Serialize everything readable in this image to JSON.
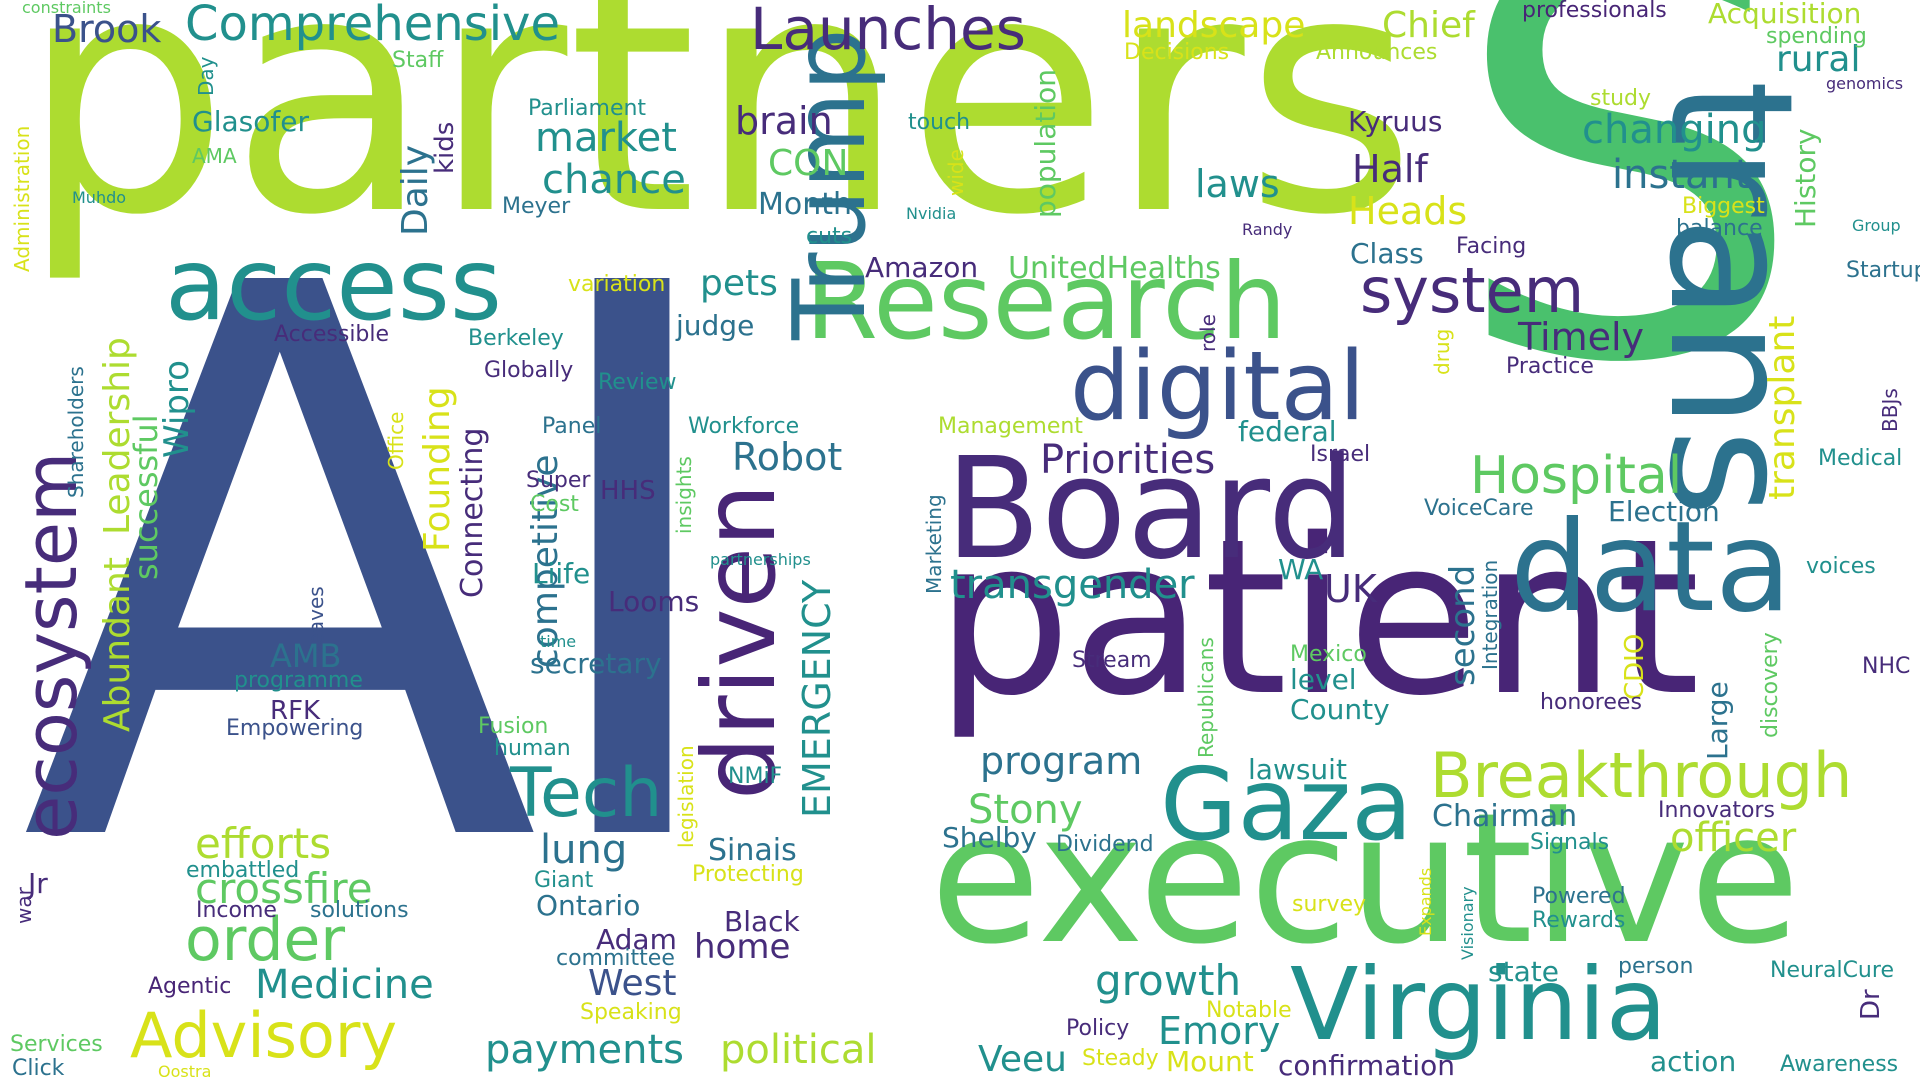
{
  "palette": {
    "navy": "#3b528b",
    "purple": "#472c7a",
    "deep_purple": "#482576",
    "teal": "#21908d",
    "dark_teal": "#2c728e",
    "green": "#5ec962",
    "lime": "#addc30",
    "yellow": "#d8e219",
    "bright_green": "#4ac16d"
  },
  "words": [
    "AI",
    "partners",
    "S",
    "patient",
    "executive",
    "Board",
    "trans",
    "data",
    "Research",
    "Trump",
    "driven",
    "access",
    "Gaza",
    "Virginia",
    "digital",
    "ecosystem",
    "Breakthrough",
    "Tech",
    "system",
    "Advisory",
    "order",
    "Launches",
    "Comprehensive",
    "Hospital",
    "Medicine",
    "crossfire",
    "efforts",
    "Priorities",
    "transgender",
    "payments",
    "political",
    "growth",
    "Emory",
    "Stony",
    "officer",
    "changing",
    "instant",
    "Brook",
    "landscape",
    "Chief",
    "Acquisition",
    "professionals",
    "market",
    "chance",
    "brain",
    "Half",
    "Heads",
    "Kyruus",
    "rural",
    "transplant",
    "History",
    "laws",
    "Timely",
    "Chairman",
    "program",
    "Robot",
    "lung",
    "EMERGENCY",
    "competitive",
    "Connecting",
    "Founding",
    "Leadership",
    "Abundant",
    "Wipro",
    "successful",
    "Daily",
    "kids",
    "population",
    "UnitedHealths",
    "Amazon",
    "judge",
    "pets",
    "CON",
    "Month",
    "cuts",
    "Glasofer",
    "Parliament",
    "Staff",
    "Day",
    "AMA",
    "Muhdo",
    "Administration",
    "constraints",
    "Decisions",
    "Announces",
    "spending",
    "genomics",
    "study",
    "touch",
    "Meyer",
    "wide",
    "Nvidia",
    "Randy",
    "Biggest",
    "balance",
    "Group",
    "Startup",
    "Class",
    "Facing",
    "Practice",
    "role",
    "drug",
    "federal",
    "Israel",
    "Election",
    "VoiceCare",
    "Medical",
    "BBJs",
    "voices",
    "second",
    "Integration",
    "UK",
    "WA",
    "Looms",
    "Liife",
    "secretary",
    "Management",
    "Workforce",
    "Globally",
    "Review",
    "Berkeley",
    "Accessible",
    "variation",
    "Panel",
    "Office",
    "Shareholders",
    "Super",
    "Cost",
    "insights",
    "HHS",
    "Marketing",
    "partnerships",
    "Weaves",
    "AMB",
    "programme",
    "RFK",
    "Empowering",
    "time",
    "Stream",
    "Republicans",
    "Mexico",
    "level",
    "County",
    "CDIO",
    "Large",
    "discovery",
    "NHC",
    "honorees",
    "lawsuit",
    "Innovators",
    "Signals",
    "Fusion",
    "human",
    "legislation",
    "NMiF",
    "Sinais",
    "Protecting",
    "Giant",
    "Ontario",
    "Adam",
    "committee",
    "Black",
    "home",
    "West",
    "Shelby",
    "Dividend",
    "Powered",
    "Rewards",
    "survey",
    "Expands",
    "Visionary",
    "state",
    "person",
    "NeuralCure",
    "Dr",
    "Speaking",
    "Notable",
    "Policy",
    "Steady",
    "Mount",
    "confirmation",
    "action",
    "Awareness",
    "Veeu",
    "embattled",
    "Income",
    "solutions",
    "Jr",
    "war",
    "Agentic",
    "Services",
    "Click",
    "Oostra"
  ]
}
